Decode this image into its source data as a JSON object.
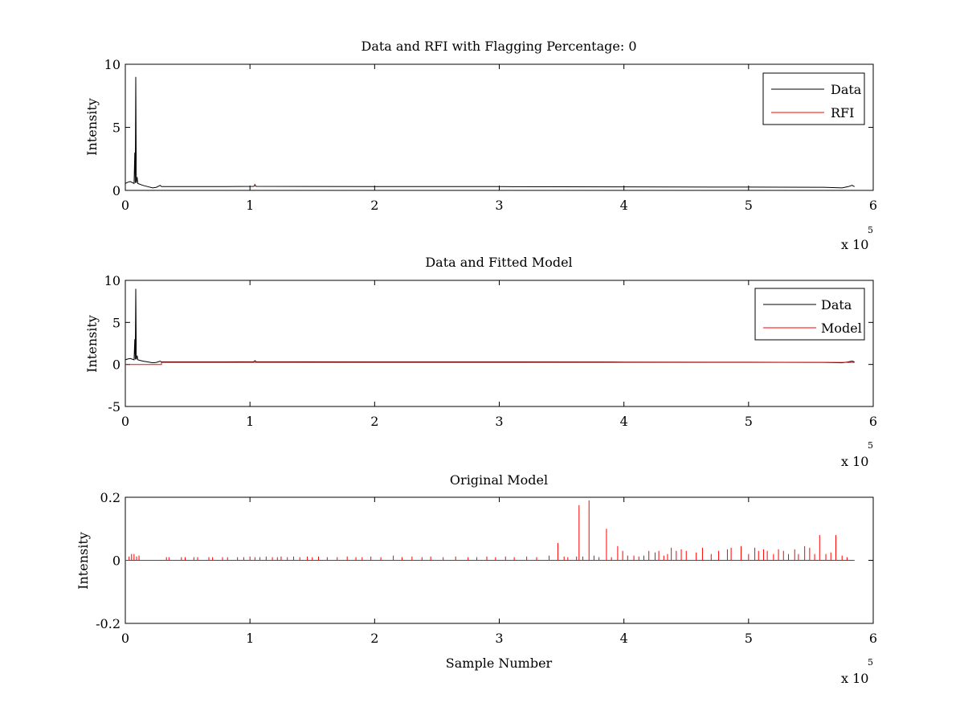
{
  "chart_data": [
    {
      "type": "line",
      "title": "Data and RFI with Flagging Percentage: 0",
      "xlabel": "",
      "ylabel": "Intensity",
      "xlim": [
        0,
        600000
      ],
      "ylim": [
        0,
        10
      ],
      "xticks": [
        0,
        1,
        2,
        3,
        4,
        5,
        6
      ],
      "yticks": [
        0,
        5,
        10
      ],
      "x_multiplier": "x 10",
      "x_multiplier_exp": "5",
      "grid": false,
      "legend_position": "top-right",
      "legend": [
        {
          "label": "Data",
          "color": "#000000"
        },
        {
          "label": "RFI",
          "color": "#ff0000"
        }
      ],
      "series": [
        {
          "name": "Data",
          "color": "#000000",
          "points": [
            [
              0,
              0.55
            ],
            [
              2000,
              0.65
            ],
            [
              4000,
              0.7
            ],
            [
              6000,
              0.6
            ],
            [
              7000,
              0.55
            ],
            [
              7600,
              3.0
            ],
            [
              8000,
              0.6
            ],
            [
              8400,
              9.0
            ],
            [
              8800,
              0.6
            ],
            [
              9500,
              1.05
            ],
            [
              10000,
              0.55
            ],
            [
              14000,
              0.4
            ],
            [
              18000,
              0.3
            ],
            [
              22000,
              0.2
            ],
            [
              25000,
              0.25
            ],
            [
              28000,
              0.4
            ],
            [
              29000,
              0.3
            ],
            [
              40000,
              0.3
            ],
            [
              80000,
              0.3
            ],
            [
              103000,
              0.32
            ],
            [
              104000,
              0.4
            ],
            [
              105000,
              0.32
            ],
            [
              200000,
              0.3
            ],
            [
              300000,
              0.3
            ],
            [
              400000,
              0.28
            ],
            [
              500000,
              0.26
            ],
            [
              560000,
              0.25
            ],
            [
              575000,
              0.2
            ],
            [
              580000,
              0.3
            ],
            [
              583000,
              0.4
            ],
            [
              585000,
              0.3
            ]
          ]
        },
        {
          "name": "RFI",
          "color": "#ff0000",
          "points": [
            [
              103500,
              0.45
            ],
            [
              104500,
              0.45
            ]
          ]
        }
      ]
    },
    {
      "type": "line",
      "title": "Data and Fitted Model",
      "xlabel": "",
      "ylabel": "Intensity",
      "xlim": [
        0,
        600000
      ],
      "ylim": [
        -5,
        10
      ],
      "xticks": [
        0,
        1,
        2,
        3,
        4,
        5,
        6
      ],
      "yticks": [
        -5,
        0,
        5,
        10
      ],
      "x_multiplier": "x 10",
      "x_multiplier_exp": "5",
      "grid": false,
      "legend_position": "top-right",
      "legend": [
        {
          "label": "Data",
          "color": "#000000"
        },
        {
          "label": "Model",
          "color": "#ff0000"
        }
      ],
      "series": [
        {
          "name": "Data",
          "color": "#000000",
          "points": [
            [
              0,
              0.55
            ],
            [
              2000,
              0.65
            ],
            [
              4000,
              0.7
            ],
            [
              6000,
              0.6
            ],
            [
              7000,
              0.55
            ],
            [
              7600,
              3.0
            ],
            [
              8000,
              0.6
            ],
            [
              8400,
              9.0
            ],
            [
              8800,
              0.6
            ],
            [
              9500,
              1.05
            ],
            [
              10000,
              0.55
            ],
            [
              14000,
              0.4
            ],
            [
              18000,
              0.3
            ],
            [
              22000,
              0.2
            ],
            [
              25000,
              0.25
            ],
            [
              28000,
              0.4
            ],
            [
              29000,
              0.3
            ],
            [
              40000,
              0.3
            ],
            [
              80000,
              0.3
            ],
            [
              103000,
              0.32
            ],
            [
              104000,
              0.45
            ],
            [
              105000,
              0.32
            ],
            [
              200000,
              0.3
            ],
            [
              300000,
              0.3
            ],
            [
              400000,
              0.28
            ],
            [
              500000,
              0.26
            ],
            [
              560000,
              0.25
            ],
            [
              575000,
              0.2
            ],
            [
              580000,
              0.3
            ],
            [
              583000,
              0.4
            ],
            [
              585000,
              0.3
            ]
          ]
        },
        {
          "name": "Model",
          "color": "#ff0000",
          "points": [
            [
              0,
              0.0
            ],
            [
              29000,
              0.0
            ],
            [
              29000,
              0.25
            ],
            [
              585000,
              0.25
            ]
          ]
        }
      ]
    },
    {
      "type": "line",
      "title": "Original Model",
      "xlabel": "Sample Number",
      "ylabel": "Intensity",
      "xlim": [
        0,
        600000
      ],
      "ylim": [
        -0.2,
        0.2
      ],
      "xticks": [
        0,
        1,
        2,
        3,
        4,
        5,
        6
      ],
      "yticks": [
        -0.2,
        0,
        0.2
      ],
      "x_multiplier": "x 10",
      "x_multiplier_exp": "5",
      "grid": false,
      "legend_position": "none",
      "legend": [],
      "series": [
        {
          "color": "#ff0000",
          "baseline": 0.0,
          "x_end": 585000,
          "spikes": [
            [
              3000,
              0.012
            ],
            [
              5000,
              0.02
            ],
            [
              7000,
              0.02
            ],
            [
              9000,
              0.012
            ],
            [
              11000,
              0.015
            ],
            [
              33000,
              0.01
            ],
            [
              35000,
              0.01
            ],
            [
              45000,
              0.01
            ],
            [
              48000,
              0.01
            ],
            [
              55000,
              0.01
            ],
            [
              58000,
              0.01
            ],
            [
              67000,
              0.01
            ],
            [
              70000,
              0.01
            ],
            [
              78000,
              0.01
            ],
            [
              82000,
              0.01
            ],
            [
              90000,
              0.01
            ],
            [
              95000,
              0.01
            ],
            [
              100000,
              0.012
            ],
            [
              104000,
              0.01
            ],
            [
              108000,
              0.01
            ],
            [
              113000,
              0.012
            ],
            [
              118000,
              0.01
            ],
            [
              122000,
              0.01
            ],
            [
              125000,
              0.012
            ],
            [
              130000,
              0.01
            ],
            [
              135000,
              0.012
            ],
            [
              140000,
              0.01
            ],
            [
              146000,
              0.012
            ],
            [
              150000,
              0.01
            ],
            [
              155000,
              0.012
            ],
            [
              162000,
              0.01
            ],
            [
              170000,
              0.01
            ],
            [
              178000,
              0.012
            ],
            [
              185000,
              0.01
            ],
            [
              190000,
              0.01
            ],
            [
              197000,
              0.012
            ],
            [
              205000,
              0.01
            ],
            [
              215000,
              0.015
            ],
            [
              222000,
              0.01
            ],
            [
              230000,
              0.012
            ],
            [
              238000,
              0.01
            ],
            [
              245000,
              0.012
            ],
            [
              255000,
              0.01
            ],
            [
              265000,
              0.012
            ],
            [
              275000,
              0.01
            ],
            [
              282000,
              0.01
            ],
            [
              290000,
              0.012
            ],
            [
              297000,
              0.01
            ],
            [
              305000,
              0.012
            ],
            [
              312000,
              0.01
            ],
            [
              322000,
              0.012
            ],
            [
              330000,
              0.01
            ],
            [
              340000,
              0.015
            ],
            [
              347000,
              0.055
            ],
            [
              352000,
              0.012
            ],
            [
              355000,
              0.01
            ],
            [
              362000,
              0.012
            ],
            [
              364000,
              0.175
            ],
            [
              367000,
              0.012
            ],
            [
              372000,
              0.19
            ],
            [
              376000,
              0.015
            ],
            [
              380000,
              0.01
            ],
            [
              386000,
              0.1
            ],
            [
              390000,
              0.01
            ],
            [
              395000,
              0.045
            ],
            [
              399000,
              0.03
            ],
            [
              403000,
              0.015
            ],
            [
              408000,
              0.015
            ],
            [
              412000,
              0.012
            ],
            [
              416000,
              0.015
            ],
            [
              420000,
              0.03
            ],
            [
              425000,
              0.025
            ],
            [
              428000,
              0.03
            ],
            [
              432000,
              0.015
            ],
            [
              435000,
              0.02
            ],
            [
              438000,
              0.04
            ],
            [
              442000,
              0.03
            ],
            [
              446000,
              0.035
            ],
            [
              450000,
              0.03
            ],
            [
              458000,
              0.025
            ],
            [
              463000,
              0.04
            ],
            [
              470000,
              0.02
            ],
            [
              476000,
              0.03
            ],
            [
              483000,
              0.035
            ],
            [
              486000,
              0.04
            ],
            [
              494000,
              0.045
            ],
            [
              500000,
              0.02
            ],
            [
              505000,
              0.04
            ],
            [
              508000,
              0.03
            ],
            [
              512000,
              0.035
            ],
            [
              515000,
              0.03
            ],
            [
              520000,
              0.02
            ],
            [
              524000,
              0.035
            ],
            [
              528000,
              0.03
            ],
            [
              532000,
              0.02
            ],
            [
              537000,
              0.035
            ],
            [
              540000,
              0.02
            ],
            [
              545000,
              0.045
            ],
            [
              549000,
              0.04
            ],
            [
              553000,
              0.02
            ],
            [
              557000,
              0.08
            ],
            [
              562000,
              0.02
            ],
            [
              566000,
              0.025
            ],
            [
              570000,
              0.08
            ],
            [
              575000,
              0.015
            ],
            [
              579000,
              0.01
            ]
          ]
        }
      ]
    }
  ]
}
